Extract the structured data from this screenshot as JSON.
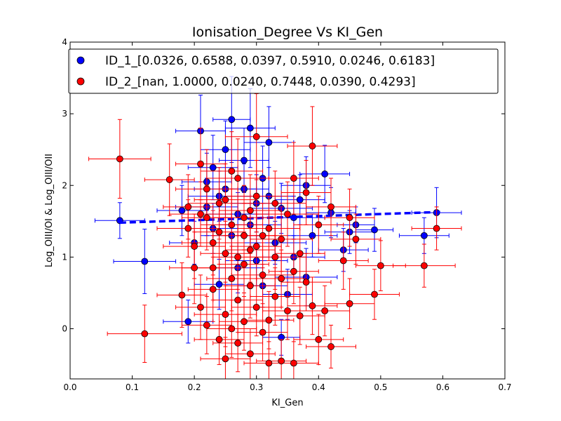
{
  "chart_data": {
    "type": "scatter",
    "title": "Ionisation_Degree Vs KI_Gen",
    "xlabel": "KI_Gen",
    "ylabel": "Log_OIII/OI & Log_OIII/OII",
    "xlim": [
      0.0,
      0.7
    ],
    "ylim": [
      -0.7,
      4.0
    ],
    "xticks": [
      "0.0",
      "0.1",
      "0.2",
      "0.3",
      "0.4",
      "0.5",
      "0.6",
      "0.7"
    ],
    "yticks": [
      "0",
      "1",
      "2",
      "3",
      "4"
    ],
    "legend_position": "top",
    "series": [
      {
        "name": "ID_1_[0.0326, 0.6588, 0.0397, 0.5910, 0.0246, 0.6183]",
        "color": "#0000ff",
        "fit_line": {
          "x": [
            0.08,
            0.6
          ],
          "y": [
            1.48,
            1.63
          ]
        },
        "points": [
          {
            "x": 0.08,
            "y": 1.51,
            "xe": 0.04,
            "ye": 0.25
          },
          {
            "x": 0.12,
            "y": 0.94,
            "xe": 0.05,
            "ye": 0.45
          },
          {
            "x": 0.19,
            "y": 0.1,
            "xe": 0.04,
            "ye": 0.3
          },
          {
            "x": 0.21,
            "y": 2.76,
            "xe": 0.04,
            "ye": 0.5
          },
          {
            "x": 0.22,
            "y": 1.7,
            "xe": 0.05,
            "ye": 0.4
          },
          {
            "x": 0.23,
            "y": 2.25,
            "xe": 0.04,
            "ye": 0.45
          },
          {
            "x": 0.24,
            "y": 1.85,
            "xe": 0.05,
            "ye": 0.35
          },
          {
            "x": 0.25,
            "y": 2.5,
            "xe": 0.04,
            "ye": 0.4
          },
          {
            "x": 0.26,
            "y": 2.92,
            "xe": 0.03,
            "ye": 0.6
          },
          {
            "x": 0.27,
            "y": 1.6,
            "xe": 0.05,
            "ye": 0.3
          },
          {
            "x": 0.28,
            "y": 1.95,
            "xe": 0.04,
            "ye": 0.35
          },
          {
            "x": 0.29,
            "y": 1.45,
            "xe": 0.05,
            "ye": 0.3
          },
          {
            "x": 0.3,
            "y": 1.75,
            "xe": 0.04,
            "ye": 0.4
          },
          {
            "x": 0.31,
            "y": 2.1,
            "xe": 0.05,
            "ye": 0.45
          },
          {
            "x": 0.32,
            "y": 2.6,
            "xe": 0.04,
            "ye": 0.5
          },
          {
            "x": 0.33,
            "y": 1.2,
            "xe": 0.05,
            "ye": 0.3
          },
          {
            "x": 0.34,
            "y": -0.12,
            "xe": 0.03,
            "ye": 0.25
          },
          {
            "x": 0.35,
            "y": 0.48,
            "xe": 0.04,
            "ye": 0.35
          },
          {
            "x": 0.36,
            "y": 1.55,
            "xe": 0.05,
            "ye": 0.3
          },
          {
            "x": 0.37,
            "y": 1.8,
            "xe": 0.04,
            "ye": 0.35
          },
          {
            "x": 0.38,
            "y": 0.72,
            "xe": 0.05,
            "ye": 0.4
          },
          {
            "x": 0.39,
            "y": 1.3,
            "xe": 0.04,
            "ye": 0.3
          },
          {
            "x": 0.41,
            "y": 2.16,
            "xe": 0.04,
            "ye": 0.4
          },
          {
            "x": 0.42,
            "y": 1.62,
            "xe": 0.04,
            "ye": 0.35
          },
          {
            "x": 0.44,
            "y": 1.1,
            "xe": 0.04,
            "ye": 0.3
          },
          {
            "x": 0.45,
            "y": 1.35,
            "xe": 0.04,
            "ye": 0.3
          },
          {
            "x": 0.46,
            "y": 1.45,
            "xe": 0.03,
            "ye": 0.25
          },
          {
            "x": 0.49,
            "y": 1.38,
            "xe": 0.03,
            "ye": 0.3
          },
          {
            "x": 0.57,
            "y": 1.3,
            "xe": 0.04,
            "ye": 0.25
          },
          {
            "x": 0.59,
            "y": 1.62,
            "xe": 0.04,
            "ye": 0.35
          },
          {
            "x": 0.2,
            "y": 1.2,
            "xe": 0.04,
            "ye": 0.3
          },
          {
            "x": 0.24,
            "y": 0.62,
            "xe": 0.04,
            "ye": 0.35
          },
          {
            "x": 0.26,
            "y": 1.3,
            "xe": 0.05,
            "ye": 0.3
          },
          {
            "x": 0.28,
            "y": 2.35,
            "xe": 0.04,
            "ye": 0.45
          },
          {
            "x": 0.3,
            "y": 0.95,
            "xe": 0.05,
            "ye": 0.35
          },
          {
            "x": 0.32,
            "y": 1.85,
            "xe": 0.04,
            "ye": 0.4
          },
          {
            "x": 0.34,
            "y": 1.68,
            "xe": 0.05,
            "ye": 0.35
          },
          {
            "x": 0.22,
            "y": 2.05,
            "xe": 0.04,
            "ye": 0.4
          },
          {
            "x": 0.27,
            "y": 0.85,
            "xe": 0.04,
            "ye": 0.35
          },
          {
            "x": 0.31,
            "y": 0.6,
            "xe": 0.04,
            "ye": 0.3
          },
          {
            "x": 0.25,
            "y": 1.95,
            "xe": 0.05,
            "ye": 0.4
          },
          {
            "x": 0.29,
            "y": 2.8,
            "xe": 0.04,
            "ye": 0.55
          },
          {
            "x": 0.36,
            "y": 1.0,
            "xe": 0.05,
            "ye": 0.3
          },
          {
            "x": 0.38,
            "y": 2.0,
            "xe": 0.04,
            "ye": 0.4
          },
          {
            "x": 0.23,
            "y": 1.4,
            "xe": 0.05,
            "ye": 0.35
          },
          {
            "x": 0.18,
            "y": 1.65,
            "xe": 0.04,
            "ye": 0.35
          }
        ]
      },
      {
        "name": "ID_2_[nan, 1.0000, 0.0240, 0.7448, 0.0390, 0.4293]",
        "color": "#ff0000",
        "fit_line": null,
        "points": [
          {
            "x": 0.08,
            "y": 2.37,
            "xe": 0.05,
            "ye": 0.55
          },
          {
            "x": 0.12,
            "y": -0.07,
            "xe": 0.06,
            "ye": 0.4
          },
          {
            "x": 0.16,
            "y": 2.08,
            "xe": 0.04,
            "ye": 0.5
          },
          {
            "x": 0.18,
            "y": 0.47,
            "xe": 0.04,
            "ye": 0.45
          },
          {
            "x": 0.19,
            "y": 1.4,
            "xe": 0.05,
            "ye": 0.4
          },
          {
            "x": 0.2,
            "y": 0.85,
            "xe": 0.04,
            "ye": 0.5
          },
          {
            "x": 0.21,
            "y": 1.6,
            "xe": 0.05,
            "ye": 0.45
          },
          {
            "x": 0.21,
            "y": 0.3,
            "xe": 0.04,
            "ye": 0.45
          },
          {
            "x": 0.22,
            "y": 1.95,
            "xe": 0.05,
            "ye": 0.55
          },
          {
            "x": 0.22,
            "y": 0.05,
            "xe": 0.04,
            "ye": 0.4
          },
          {
            "x": 0.23,
            "y": 1.2,
            "xe": 0.05,
            "ye": 0.45
          },
          {
            "x": 0.23,
            "y": 0.55,
            "xe": 0.04,
            "ye": 0.45
          },
          {
            "x": 0.24,
            "y": 1.75,
            "xe": 0.05,
            "ye": 0.5
          },
          {
            "x": 0.24,
            "y": -0.15,
            "xe": 0.04,
            "ye": 0.35
          },
          {
            "x": 0.25,
            "y": 1.05,
            "xe": 0.04,
            "ye": 0.45
          },
          {
            "x": 0.25,
            "y": 0.2,
            "xe": 0.05,
            "ye": 0.45
          },
          {
            "x": 0.25,
            "y": -0.42,
            "xe": 0.04,
            "ye": 0.3
          },
          {
            "x": 0.26,
            "y": 1.45,
            "xe": 0.05,
            "ye": 0.5
          },
          {
            "x": 0.26,
            "y": 0.7,
            "xe": 0.04,
            "ye": 0.45
          },
          {
            "x": 0.27,
            "y": 2.1,
            "xe": 0.05,
            "ye": 0.55
          },
          {
            "x": 0.27,
            "y": 0.4,
            "xe": 0.04,
            "ye": 0.45
          },
          {
            "x": 0.27,
            "y": -0.2,
            "xe": 0.04,
            "ye": 0.4
          },
          {
            "x": 0.28,
            "y": 1.3,
            "xe": 0.05,
            "ye": 0.45
          },
          {
            "x": 0.28,
            "y": 0.9,
            "xe": 0.04,
            "ye": 0.45
          },
          {
            "x": 0.28,
            "y": 0.1,
            "xe": 0.04,
            "ye": 0.4
          },
          {
            "x": 0.29,
            "y": 1.65,
            "xe": 0.05,
            "ye": 0.5
          },
          {
            "x": 0.29,
            "y": 0.6,
            "xe": 0.04,
            "ye": 0.45
          },
          {
            "x": 0.29,
            "y": -0.35,
            "xe": 0.04,
            "ye": 0.35
          },
          {
            "x": 0.3,
            "y": 2.68,
            "xe": 0.05,
            "ye": 0.6
          },
          {
            "x": 0.3,
            "y": 1.15,
            "xe": 0.04,
            "ye": 0.45
          },
          {
            "x": 0.3,
            "y": 0.3,
            "xe": 0.04,
            "ye": 0.4
          },
          {
            "x": 0.31,
            "y": 0.75,
            "xe": 0.05,
            "ye": 0.45
          },
          {
            "x": 0.31,
            "y": -0.05,
            "xe": 0.04,
            "ye": 0.4
          },
          {
            "x": 0.32,
            "y": 1.4,
            "xe": 0.05,
            "ye": 0.45
          },
          {
            "x": 0.32,
            "y": 0.12,
            "xe": 0.04,
            "ye": 0.4
          },
          {
            "x": 0.32,
            "y": -0.48,
            "xe": 0.04,
            "ye": 0.3
          },
          {
            "x": 0.33,
            "y": 1.0,
            "xe": 0.05,
            "ye": 0.45
          },
          {
            "x": 0.33,
            "y": 0.45,
            "xe": 0.04,
            "ye": 0.4
          },
          {
            "x": 0.34,
            "y": 1.25,
            "xe": 0.05,
            "ye": 0.45
          },
          {
            "x": 0.34,
            "y": -0.45,
            "xe": 0.04,
            "ye": 0.3
          },
          {
            "x": 0.35,
            "y": 1.6,
            "xe": 0.05,
            "ye": 0.45
          },
          {
            "x": 0.35,
            "y": 0.25,
            "xe": 0.04,
            "ye": 0.4
          },
          {
            "x": 0.36,
            "y": 2.1,
            "xe": 0.04,
            "ye": 0.5
          },
          {
            "x": 0.36,
            "y": 0.8,
            "xe": 0.04,
            "ye": 0.45
          },
          {
            "x": 0.37,
            "y": 1.05,
            "xe": 0.04,
            "ye": 0.4
          },
          {
            "x": 0.37,
            "y": 0.18,
            "xe": 0.04,
            "ye": 0.4
          },
          {
            "x": 0.38,
            "y": 1.9,
            "xe": 0.04,
            "ye": 0.45
          },
          {
            "x": 0.38,
            "y": 0.65,
            "xe": 0.04,
            "ye": 0.4
          },
          {
            "x": 0.39,
            "y": 2.55,
            "xe": 0.04,
            "ye": 0.55
          },
          {
            "x": 0.39,
            "y": 0.32,
            "xe": 0.04,
            "ye": 0.4
          },
          {
            "x": 0.4,
            "y": 1.45,
            "xe": 0.04,
            "ye": 0.4
          },
          {
            "x": 0.4,
            "y": -0.15,
            "xe": 0.04,
            "ye": 0.35
          },
          {
            "x": 0.41,
            "y": 0.25,
            "xe": 0.04,
            "ye": 0.35
          },
          {
            "x": 0.42,
            "y": 1.7,
            "xe": 0.04,
            "ye": 0.4
          },
          {
            "x": 0.42,
            "y": -0.25,
            "xe": 0.04,
            "ye": 0.3
          },
          {
            "x": 0.44,
            "y": 0.95,
            "xe": 0.04,
            "ye": 0.4
          },
          {
            "x": 0.45,
            "y": 1.55,
            "xe": 0.04,
            "ye": 0.4
          },
          {
            "x": 0.45,
            "y": 0.35,
            "xe": 0.04,
            "ye": 0.35
          },
          {
            "x": 0.46,
            "y": 1.25,
            "xe": 0.04,
            "ye": 0.35
          },
          {
            "x": 0.49,
            "y": 0.48,
            "xe": 0.04,
            "ye": 0.35
          },
          {
            "x": 0.5,
            "y": 0.88,
            "xe": 0.04,
            "ye": 0.35
          },
          {
            "x": 0.57,
            "y": 0.88,
            "xe": 0.05,
            "ye": 0.3
          },
          {
            "x": 0.59,
            "y": 1.4,
            "xe": 0.04,
            "ye": 0.3
          },
          {
            "x": 0.21,
            "y": 2.3,
            "xe": 0.04,
            "ye": 0.5
          },
          {
            "x": 0.23,
            "y": 0.85,
            "xe": 0.05,
            "ye": 0.45
          },
          {
            "x": 0.24,
            "y": 1.35,
            "xe": 0.04,
            "ye": 0.45
          },
          {
            "x": 0.26,
            "y": 2.2,
            "xe": 0.05,
            "ye": 0.55
          },
          {
            "x": 0.27,
            "y": 1.0,
            "xe": 0.04,
            "ye": 0.45
          },
          {
            "x": 0.28,
            "y": 1.55,
            "xe": 0.05,
            "ye": 0.45
          },
          {
            "x": 0.29,
            "y": 1.1,
            "xe": 0.04,
            "ye": 0.45
          },
          {
            "x": 0.3,
            "y": 1.85,
            "xe": 0.05,
            "ye": 0.5
          },
          {
            "x": 0.31,
            "y": 1.3,
            "xe": 0.04,
            "ye": 0.45
          },
          {
            "x": 0.33,
            "y": 1.75,
            "xe": 0.05,
            "ye": 0.45
          },
          {
            "x": 0.34,
            "y": 0.7,
            "xe": 0.04,
            "ye": 0.4
          },
          {
            "x": 0.22,
            "y": 1.55,
            "xe": 0.04,
            "ye": 0.45
          },
          {
            "x": 0.25,
            "y": 1.8,
            "xe": 0.05,
            "ye": 0.5
          },
          {
            "x": 0.2,
            "y": 1.15,
            "xe": 0.05,
            "ye": 0.45
          },
          {
            "x": 0.19,
            "y": 1.7,
            "xe": 0.04,
            "ye": 0.45
          },
          {
            "x": 0.26,
            "y": 0.0,
            "xe": 0.04,
            "ye": 0.4
          },
          {
            "x": 0.36,
            "y": -0.48,
            "xe": 0.04,
            "ye": 0.3
          }
        ]
      }
    ]
  }
}
